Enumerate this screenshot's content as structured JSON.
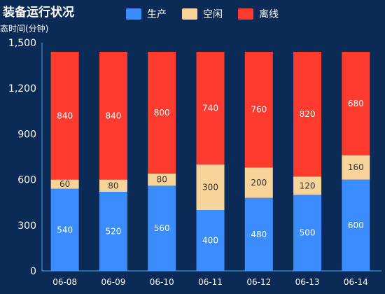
{
  "title": "装备运行状况",
  "ylabel": "态时间(分钟)",
  "legend": [
    {
      "name": "生产",
      "color": "#3b8cff"
    },
    {
      "name": "空闲",
      "color": "#f8d39a"
    },
    {
      "name": "离线",
      "color": "#ff3b30"
    }
  ],
  "chart_data": {
    "type": "bar",
    "stacked": true,
    "categories": [
      "06-08",
      "06-09",
      "06-10",
      "06-11",
      "06-12",
      "06-13",
      "06-14"
    ],
    "series": [
      {
        "name": "生产",
        "values": [
          540,
          520,
          560,
          400,
          480,
          500,
          600
        ]
      },
      {
        "name": "空闲",
        "values": [
          60,
          80,
          80,
          300,
          200,
          120,
          160
        ]
      },
      {
        "name": "离线",
        "values": [
          840,
          840,
          800,
          740,
          760,
          820,
          680
        ]
      }
    ],
    "ylim": [
      0,
      1500
    ],
    "yticks": [
      "0",
      "300",
      "600",
      "900",
      "1,200",
      "1,500"
    ],
    "grid": false,
    "legend_position": "top"
  }
}
